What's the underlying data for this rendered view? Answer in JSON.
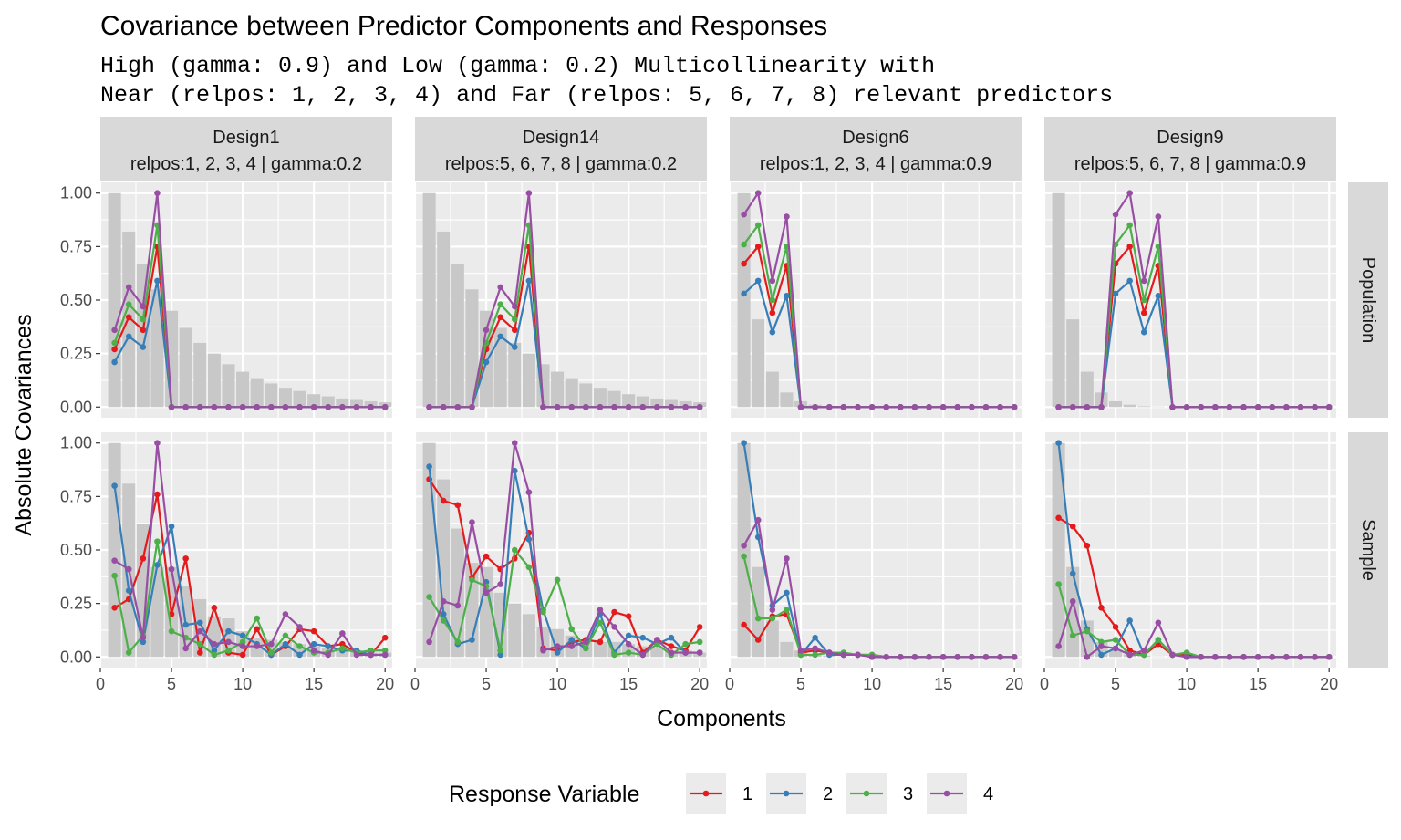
{
  "chart_data": {
    "type": "line",
    "title": "Covariance between Predictor Components and Responses",
    "subtitle_lines": [
      "High (gamma: 0.9) and Low (gamma: 0.2) Multicollinearity with",
      "Near (relpos: 1, 2, 3, 4) and Far (relpos: 5, 6, 7, 8) relevant predictors"
    ],
    "xlabel": "Components",
    "ylabel": "Absolute Covariances",
    "xlim": [
      0,
      20.5
    ],
    "ylim": [
      -0.05,
      1.05
    ],
    "x_ticks": [
      0,
      5,
      10,
      15,
      20
    ],
    "x_tick_labels": [
      "0",
      "5",
      "10",
      "15",
      "20"
    ],
    "y_ticks": [
      0,
      0.25,
      0.5,
      0.75,
      1.0
    ],
    "y_tick_labels": [
      "0.00",
      "0.25",
      "0.50",
      "0.75",
      "1.00"
    ],
    "grid": true,
    "legend": {
      "title": "Response Variable",
      "position": "bottom",
      "entries": [
        {
          "label": "1",
          "color": "#E41A1C"
        },
        {
          "label": "2",
          "color": "#377EB8"
        },
        {
          "label": "3",
          "color": "#4DAF4A"
        },
        {
          "label": "4",
          "color": "#984EA3"
        }
      ]
    },
    "bar_color": "#c8c8c8",
    "x": [
      1,
      2,
      3,
      4,
      5,
      6,
      7,
      8,
      9,
      10,
      11,
      12,
      13,
      14,
      15,
      16,
      17,
      18,
      19,
      20
    ],
    "columns": [
      {
        "label_line1": "Design1",
        "label_line2": "relpos:1, 2, 3, 4 | gamma:0.2"
      },
      {
        "label_line1": "Design14",
        "label_line2": "relpos:5, 6, 7, 8 | gamma:0.2"
      },
      {
        "label_line1": "Design6",
        "label_line2": "relpos:1, 2, 3, 4 | gamma:0.9"
      },
      {
        "label_line1": "Design9",
        "label_line2": "relpos:5, 6, 7, 8 | gamma:0.9"
      }
    ],
    "rows": [
      {
        "label": "Population"
      },
      {
        "label": "Sample"
      }
    ],
    "panels": [
      {
        "column": 0,
        "row": 0,
        "bars": [
          1.0,
          0.82,
          0.67,
          0.55,
          0.45,
          0.37,
          0.3,
          0.25,
          0.2,
          0.165,
          0.135,
          0.11,
          0.09,
          0.075,
          0.06,
          0.05,
          0.04,
          0.033,
          0.027,
          0.022
        ],
        "series": [
          {
            "values": [
              0.27,
              0.42,
              0.36,
              0.75,
              0,
              0,
              0,
              0,
              0,
              0,
              0,
              0,
              0,
              0,
              0,
              0,
              0,
              0,
              0,
              0
            ]
          },
          {
            "values": [
              0.21,
              0.33,
              0.28,
              0.59,
              0,
              0,
              0,
              0,
              0,
              0,
              0,
              0,
              0,
              0,
              0,
              0,
              0,
              0,
              0,
              0
            ]
          },
          {
            "values": [
              0.3,
              0.48,
              0.41,
              0.85,
              0,
              0,
              0,
              0,
              0,
              0,
              0,
              0,
              0,
              0,
              0,
              0,
              0,
              0,
              0,
              0
            ]
          },
          {
            "values": [
              0.36,
              0.56,
              0.47,
              1.0,
              0,
              0,
              0,
              0,
              0,
              0,
              0,
              0,
              0,
              0,
              0,
              0,
              0,
              0,
              0,
              0
            ]
          }
        ]
      },
      {
        "column": 1,
        "row": 0,
        "bars": [
          1.0,
          0.82,
          0.67,
          0.55,
          0.45,
          0.37,
          0.3,
          0.25,
          0.2,
          0.165,
          0.135,
          0.11,
          0.09,
          0.075,
          0.06,
          0.05,
          0.04,
          0.033,
          0.027,
          0.022
        ],
        "series": [
          {
            "values": [
              0,
              0,
              0,
              0,
              0.27,
              0.42,
              0.36,
              0.75,
              0,
              0,
              0,
              0,
              0,
              0,
              0,
              0,
              0,
              0,
              0,
              0
            ]
          },
          {
            "values": [
              0,
              0,
              0,
              0,
              0.21,
              0.33,
              0.28,
              0.59,
              0,
              0,
              0,
              0,
              0,
              0,
              0,
              0,
              0,
              0,
              0,
              0
            ]
          },
          {
            "values": [
              0,
              0,
              0,
              0,
              0.3,
              0.48,
              0.41,
              0.85,
              0,
              0,
              0,
              0,
              0,
              0,
              0,
              0,
              0,
              0,
              0,
              0
            ]
          },
          {
            "values": [
              0,
              0,
              0,
              0,
              0.36,
              0.56,
              0.47,
              1.0,
              0,
              0,
              0,
              0,
              0,
              0,
              0,
              0,
              0,
              0,
              0,
              0
            ]
          }
        ]
      },
      {
        "column": 2,
        "row": 0,
        "bars": [
          1.0,
          0.41,
          0.165,
          0.068,
          0.027,
          0.011,
          0.004,
          0.002,
          0.001,
          0,
          0,
          0,
          0,
          0,
          0,
          0,
          0,
          0,
          0,
          0
        ],
        "series": [
          {
            "values": [
              0.67,
              0.75,
              0.44,
              0.66,
              0,
              0,
              0,
              0,
              0,
              0,
              0,
              0,
              0,
              0,
              0,
              0,
              0,
              0,
              0,
              0
            ]
          },
          {
            "values": [
              0.53,
              0.59,
              0.35,
              0.52,
              0,
              0,
              0,
              0,
              0,
              0,
              0,
              0,
              0,
              0,
              0,
              0,
              0,
              0,
              0,
              0
            ]
          },
          {
            "values": [
              0.76,
              0.85,
              0.5,
              0.75,
              0,
              0,
              0,
              0,
              0,
              0,
              0,
              0,
              0,
              0,
              0,
              0,
              0,
              0,
              0,
              0
            ]
          },
          {
            "values": [
              0.9,
              1.0,
              0.59,
              0.89,
              0,
              0,
              0,
              0,
              0,
              0,
              0,
              0,
              0,
              0,
              0,
              0,
              0,
              0,
              0,
              0
            ]
          }
        ]
      },
      {
        "column": 3,
        "row": 0,
        "bars": [
          1.0,
          0.41,
          0.165,
          0.068,
          0.027,
          0.011,
          0.004,
          0.002,
          0.001,
          0,
          0,
          0,
          0,
          0,
          0,
          0,
          0,
          0,
          0,
          0
        ],
        "series": [
          {
            "values": [
              0,
              0,
              0,
              0,
              0.67,
              0.75,
              0.44,
              0.66,
              0,
              0,
              0,
              0,
              0,
              0,
              0,
              0,
              0,
              0,
              0,
              0
            ]
          },
          {
            "values": [
              0,
              0,
              0,
              0,
              0.53,
              0.59,
              0.35,
              0.52,
              0,
              0,
              0,
              0,
              0,
              0,
              0,
              0,
              0,
              0,
              0,
              0
            ]
          },
          {
            "values": [
              0,
              0,
              0,
              0,
              0.76,
              0.85,
              0.5,
              0.75,
              0,
              0,
              0,
              0,
              0,
              0,
              0,
              0,
              0,
              0,
              0,
              0
            ]
          },
          {
            "values": [
              0,
              0,
              0,
              0,
              0.9,
              1.0,
              0.59,
              0.89,
              0,
              0,
              0,
              0,
              0,
              0,
              0,
              0,
              0,
              0,
              0,
              0
            ]
          }
        ]
      },
      {
        "column": 0,
        "row": 1,
        "bars": [
          1.0,
          0.81,
          0.62,
          0.42,
          0.42,
          0.33,
          0.27,
          0.19,
          0.18,
          0.12,
          0.09,
          0.08,
          0.07,
          0.06,
          0.05,
          0.04,
          0.03,
          0.03,
          0.02,
          0.02
        ],
        "series": [
          {
            "values": [
              0.23,
              0.27,
              0.46,
              0.76,
              0.2,
              0.46,
              0.02,
              0.23,
              0.02,
              0.01,
              0.13,
              0.01,
              0.05,
              0.13,
              0.12,
              0.05,
              0.06,
              0.02,
              0.01,
              0.09
            ]
          },
          {
            "values": [
              0.8,
              0.31,
              0.07,
              0.43,
              0.61,
              0.15,
              0.16,
              0.03,
              0.12,
              0.1,
              0.06,
              0.01,
              0.06,
              0.01,
              0.06,
              0.05,
              0.03,
              0.03,
              0.01,
              0.01
            ]
          },
          {
            "values": [
              0.38,
              0.02,
              0.1,
              0.54,
              0.12,
              0.09,
              0.06,
              0.01,
              0.03,
              0.07,
              0.18,
              0.02,
              0.1,
              0.05,
              0.02,
              0.02,
              0.04,
              0.02,
              0.03,
              0.03
            ]
          },
          {
            "values": [
              0.45,
              0.41,
              0.09,
              1.0,
              0.41,
              0.04,
              0.12,
              0.06,
              0.07,
              0.05,
              0.05,
              0.06,
              0.2,
              0.14,
              0.03,
              0.01,
              0.11,
              0.01,
              0.01,
              0.01
            ]
          }
        ]
      },
      {
        "column": 1,
        "row": 1,
        "bars": [
          1.0,
          0.83,
          0.6,
          0.44,
          0.42,
          0.3,
          0.25,
          0.2,
          0.14,
          0.13,
          0.1,
          0.08,
          0.07,
          0.07,
          0.06,
          0.05,
          0.04,
          0.03,
          0.03,
          0.02
        ],
        "series": [
          {
            "values": [
              0.83,
              0.73,
              0.71,
              0.37,
              0.47,
              0.41,
              0.46,
              0.58,
              0.04,
              0.03,
              0.07,
              0.08,
              0.07,
              0.21,
              0.19,
              0.02,
              0.08,
              0.05,
              0.03,
              0.14
            ]
          },
          {
            "values": [
              0.89,
              0.2,
              0.06,
              0.08,
              0.35,
              0.01,
              0.87,
              0.55,
              0.22,
              0.02,
              0.08,
              0.04,
              0.2,
              0.02,
              0.1,
              0.09,
              0.06,
              0.09,
              0.02,
              0.02
            ]
          },
          {
            "values": [
              0.28,
              0.17,
              0.07,
              0.36,
              0.33,
              0.03,
              0.5,
              0.42,
              0.21,
              0.36,
              0.13,
              0.04,
              0.16,
              0.01,
              0.02,
              0.01,
              0.06,
              0.01,
              0.06,
              0.07
            ]
          },
          {
            "values": [
              0.07,
              0.26,
              0.24,
              0.63,
              0.3,
              0.34,
              1.0,
              0.77,
              0.03,
              0.05,
              0.05,
              0.07,
              0.22,
              0.14,
              0.06,
              0.01,
              0.08,
              0.02,
              0.02,
              0.02
            ]
          }
        ]
      },
      {
        "column": 2,
        "row": 1,
        "bars": [
          1.0,
          0.42,
          0.17,
          0.07,
          0.03,
          0.012,
          0.005,
          0.002,
          0.001,
          0,
          0,
          0,
          0,
          0,
          0,
          0,
          0,
          0,
          0,
          0
        ],
        "series": [
          {
            "values": [
              0.15,
              0.08,
              0.19,
              0.2,
              0.02,
              0.03,
              0.02,
              0.01,
              0.01,
              0.01,
              0,
              0,
              0,
              0,
              0,
              0,
              0,
              0,
              0,
              0
            ]
          },
          {
            "values": [
              1.0,
              0.56,
              0.24,
              0.3,
              0.01,
              0.09,
              0.01,
              0.01,
              0.01,
              0,
              0,
              0,
              0,
              0,
              0,
              0,
              0,
              0,
              0,
              0
            ]
          },
          {
            "values": [
              0.47,
              0.18,
              0.18,
              0.22,
              0.01,
              0.01,
              0.02,
              0.02,
              0.01,
              0.01,
              0,
              0,
              0,
              0,
              0,
              0,
              0,
              0,
              0,
              0
            ]
          },
          {
            "values": [
              0.52,
              0.64,
              0.22,
              0.46,
              0.03,
              0.04,
              0.02,
              0.01,
              0.01,
              0,
              0,
              0,
              0,
              0,
              0,
              0,
              0,
              0,
              0,
              0
            ]
          }
        ]
      },
      {
        "column": 3,
        "row": 1,
        "bars": [
          1.0,
          0.42,
          0.17,
          0.07,
          0.03,
          0.012,
          0.005,
          0.002,
          0.001,
          0,
          0,
          0,
          0,
          0,
          0,
          0,
          0,
          0,
          0,
          0
        ],
        "series": [
          {
            "values": [
              0.65,
              0.61,
              0.52,
              0.23,
              0.14,
              0.03,
              0.01,
              0.06,
              0.01,
              0.01,
              0,
              0,
              0,
              0,
              0,
              0,
              0,
              0,
              0,
              0
            ]
          },
          {
            "values": [
              1.0,
              0.39,
              0.13,
              0.01,
              0.04,
              0.17,
              0.01,
              0.08,
              0.01,
              0,
              0,
              0,
              0,
              0,
              0,
              0,
              0,
              0,
              0,
              0
            ]
          },
          {
            "values": [
              0.34,
              0.1,
              0.12,
              0.07,
              0.08,
              0.01,
              0.01,
              0.08,
              0.01,
              0.02,
              0,
              0,
              0,
              0,
              0,
              0,
              0,
              0,
              0,
              0
            ]
          },
          {
            "values": [
              0.05,
              0.26,
              0.0,
              0.05,
              0.04,
              0.01,
              0.03,
              0.16,
              0.01,
              0,
              0,
              0,
              0,
              0,
              0,
              0,
              0,
              0,
              0,
              0
            ]
          }
        ]
      }
    ]
  }
}
